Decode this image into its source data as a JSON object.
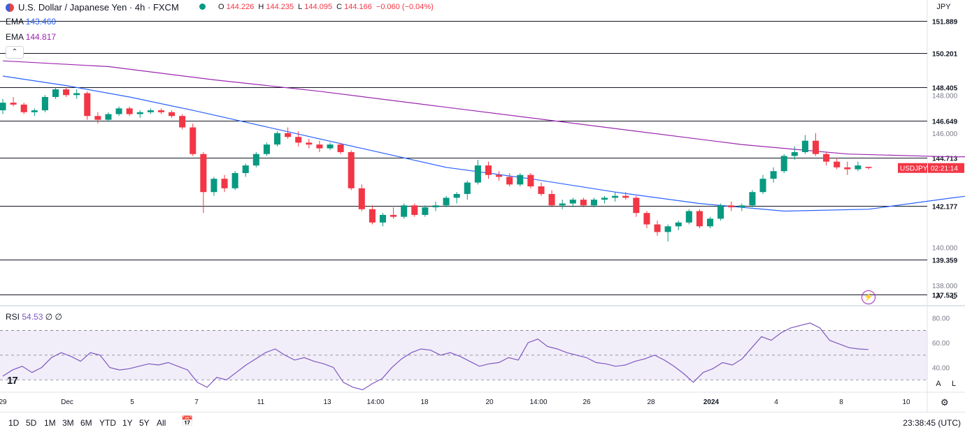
{
  "header": {
    "title": "U.S. Dollar / Japanese Yen · 4h · FXCM",
    "ohlc": {
      "o_label": "O",
      "o": "144.226",
      "h_label": "H",
      "h": "144.235",
      "l_label": "L",
      "l": "144.095",
      "c_label": "C",
      "c": "144.166",
      "change": "−0.060 (−0.04%)"
    },
    "ema1": {
      "label": "EMA",
      "value": "143.460"
    },
    "ema2": {
      "label": "EMA",
      "value": "144.817"
    },
    "currency_button": "JPY"
  },
  "price_axis": {
    "ticks": [
      "148.000",
      "146.000",
      "140.000",
      "138.000"
    ],
    "level_labels": [
      "151.889",
      "150.201",
      "148.405",
      "146.649",
      "144.713",
      "142.177",
      "139.359",
      "137.525"
    ],
    "symbol_tag": "USDJPY",
    "countdown": "02:21:14"
  },
  "rsi": {
    "label": "RSI",
    "value": "54.53",
    "extra1": "∅",
    "extra2": "∅",
    "ticks": [
      "80.00",
      "60.00",
      "40.00"
    ]
  },
  "time_axis": [
    "29",
    "Dec",
    "5",
    "7",
    "11",
    "13",
    "14:00",
    "18",
    "20",
    "14:00",
    "26",
    "28",
    "2024",
    "4",
    "8",
    "10"
  ],
  "range_buttons": [
    "1D",
    "5D",
    "1M",
    "3M",
    "6M",
    "YTD",
    "1Y",
    "5Y",
    "All"
  ],
  "clock": "23:38:45 (UTC)",
  "scale_buttons": {
    "a": "A",
    "l": "L"
  },
  "colors": {
    "up": "#089981",
    "down": "#f23645",
    "ema_fast": "#2962ff",
    "ema_slow": "#9c27b0",
    "rsi_line": "#7e57c2",
    "level": "#131722"
  },
  "chart_data": {
    "type": "candlestick",
    "instrument": "USDJPY",
    "timeframe": "4h",
    "ylim": [
      137.0,
      153.0
    ],
    "horizontal_levels": [
      151.889,
      150.201,
      148.405,
      146.649,
      144.713,
      142.177,
      139.359,
      137.525
    ],
    "candles": [
      [
        147.2,
        147.8,
        147.0,
        147.6
      ],
      [
        147.6,
        147.9,
        147.4,
        147.5
      ],
      [
        147.5,
        147.6,
        147.0,
        147.1
      ],
      [
        147.1,
        147.3,
        146.9,
        147.2
      ],
      [
        147.2,
        148.0,
        147.1,
        147.9
      ],
      [
        147.9,
        148.4,
        147.8,
        148.3
      ],
      [
        148.3,
        148.4,
        147.9,
        148.0
      ],
      [
        148.0,
        148.3,
        147.8,
        148.1
      ],
      [
        148.1,
        148.2,
        146.7,
        146.9
      ],
      [
        146.9,
        147.1,
        146.5,
        146.7
      ],
      [
        146.7,
        147.1,
        146.6,
        147.0
      ],
      [
        147.0,
        147.4,
        146.9,
        147.3
      ],
      [
        147.3,
        147.4,
        146.9,
        147.0
      ],
      [
        147.0,
        147.2,
        146.8,
        147.1
      ],
      [
        147.1,
        147.3,
        147.0,
        147.2
      ],
      [
        147.2,
        147.3,
        147.0,
        147.1
      ],
      [
        147.1,
        147.2,
        146.8,
        146.9
      ],
      [
        146.9,
        147.0,
        146.2,
        146.3
      ],
      [
        146.3,
        146.5,
        144.8,
        144.9
      ],
      [
        144.9,
        145.0,
        141.8,
        142.9
      ],
      [
        142.9,
        143.7,
        142.7,
        143.6
      ],
      [
        143.6,
        143.8,
        142.9,
        143.1
      ],
      [
        143.1,
        144.0,
        143.0,
        143.9
      ],
      [
        143.9,
        144.4,
        143.7,
        144.3
      ],
      [
        144.3,
        145.0,
        144.2,
        144.9
      ],
      [
        144.9,
        145.5,
        144.8,
        145.4
      ],
      [
        145.4,
        146.1,
        145.3,
        146.0
      ],
      [
        146.0,
        146.3,
        145.7,
        145.8
      ],
      [
        145.8,
        146.1,
        145.3,
        145.5
      ],
      [
        145.5,
        145.7,
        145.2,
        145.4
      ],
      [
        145.4,
        145.6,
        145.0,
        145.2
      ],
      [
        145.2,
        145.5,
        145.1,
        145.4
      ],
      [
        145.4,
        145.5,
        144.9,
        145.0
      ],
      [
        145.0,
        145.1,
        143.0,
        143.1
      ],
      [
        143.1,
        143.3,
        141.9,
        142.0
      ],
      [
        142.0,
        142.2,
        141.2,
        141.3
      ],
      [
        141.3,
        141.8,
        141.1,
        141.7
      ],
      [
        141.7,
        142.1,
        141.5,
        141.6
      ],
      [
        141.6,
        142.3,
        141.5,
        142.2
      ],
      [
        142.2,
        142.3,
        141.6,
        141.7
      ],
      [
        141.7,
        142.2,
        141.6,
        142.1
      ],
      [
        142.1,
        142.4,
        141.9,
        142.2
      ],
      [
        142.2,
        142.7,
        142.1,
        142.6
      ],
      [
        142.6,
        142.9,
        142.3,
        142.8
      ],
      [
        142.8,
        143.5,
        142.5,
        143.4
      ],
      [
        143.4,
        144.6,
        143.3,
        144.3
      ],
      [
        144.3,
        144.5,
        143.6,
        143.8
      ],
      [
        143.8,
        144.0,
        143.5,
        143.7
      ],
      [
        143.7,
        143.9,
        143.2,
        143.3
      ],
      [
        143.3,
        143.9,
        143.2,
        143.8
      ],
      [
        143.8,
        143.9,
        143.1,
        143.2
      ],
      [
        143.2,
        143.4,
        142.7,
        142.8
      ],
      [
        142.8,
        143.0,
        142.1,
        142.2
      ],
      [
        142.2,
        142.5,
        142.0,
        142.3
      ],
      [
        142.3,
        142.6,
        142.1,
        142.5
      ],
      [
        142.5,
        142.6,
        142.1,
        142.2
      ],
      [
        142.2,
        142.6,
        142.1,
        142.5
      ],
      [
        142.5,
        142.7,
        142.3,
        142.6
      ],
      [
        142.6,
        142.9,
        142.4,
        142.7
      ],
      [
        142.7,
        142.9,
        142.5,
        142.6
      ],
      [
        142.6,
        142.7,
        141.6,
        141.8
      ],
      [
        141.8,
        141.9,
        141.0,
        141.2
      ],
      [
        141.2,
        141.4,
        140.6,
        140.8
      ],
      [
        140.8,
        141.2,
        140.3,
        141.1
      ],
      [
        141.1,
        141.4,
        140.9,
        141.3
      ],
      [
        141.3,
        142.0,
        141.2,
        141.9
      ],
      [
        141.9,
        142.0,
        141.0,
        141.1
      ],
      [
        141.1,
        141.6,
        141.0,
        141.5
      ],
      [
        141.5,
        142.3,
        141.4,
        142.2
      ],
      [
        142.2,
        142.4,
        141.9,
        142.1
      ],
      [
        142.1,
        142.3,
        141.9,
        142.2
      ],
      [
        142.2,
        143.0,
        142.1,
        142.9
      ],
      [
        142.9,
        143.8,
        142.8,
        143.6
      ],
      [
        143.6,
        144.2,
        143.4,
        144.0
      ],
      [
        144.0,
        144.9,
        143.9,
        144.8
      ],
      [
        144.8,
        145.3,
        144.6,
        145.0
      ],
      [
        145.0,
        145.9,
        144.9,
        145.6
      ],
      [
        145.6,
        146.0,
        144.8,
        144.9
      ],
      [
        144.9,
        145.0,
        144.3,
        144.5
      ],
      [
        144.5,
        144.7,
        144.1,
        144.2
      ],
      [
        144.2,
        144.5,
        143.8,
        144.1
      ],
      [
        144.1,
        144.5,
        144.0,
        144.3
      ],
      [
        144.226,
        144.235,
        144.095,
        144.166
      ]
    ],
    "ema_fast": [
      [
        0,
        149.0
      ],
      [
        6,
        148.5
      ],
      [
        12,
        147.9
      ],
      [
        18,
        147.2
      ],
      [
        26,
        146.2
      ],
      [
        34,
        145.2
      ],
      [
        42,
        144.2
      ],
      [
        50,
        143.6
      ],
      [
        58,
        142.9
      ],
      [
        66,
        142.3
      ],
      [
        74,
        141.9
      ],
      [
        82,
        142.0
      ],
      [
        90,
        142.6
      ],
      [
        96,
        143.0
      ],
      [
        102,
        143.3
      ],
      [
        106,
        143.46
      ]
    ],
    "ema_slow": [
      [
        0,
        149.8
      ],
      [
        10,
        149.5
      ],
      [
        20,
        148.8
      ],
      [
        30,
        148.2
      ],
      [
        40,
        147.5
      ],
      [
        50,
        146.8
      ],
      [
        60,
        146.1
      ],
      [
        70,
        145.4
      ],
      [
        80,
        144.9
      ],
      [
        90,
        144.75
      ],
      [
        100,
        144.8
      ],
      [
        106,
        144.817
      ]
    ],
    "rsi_ylim": [
      20,
      90
    ],
    "rsi_bands": [
      30,
      50,
      70
    ],
    "rsi_values": [
      33,
      38,
      41,
      36,
      40,
      48,
      52,
      49,
      45,
      52,
      50,
      40,
      38,
      39,
      41,
      43,
      42,
      44,
      41,
      38,
      28,
      24,
      32,
      30,
      36,
      42,
      47,
      52,
      55,
      50,
      46,
      48,
      45,
      43,
      40,
      28,
      24,
      22,
      27,
      31,
      40,
      47,
      52,
      55,
      54,
      50,
      52,
      49,
      45,
      41,
      43,
      44,
      48,
      46,
      60,
      63,
      57,
      55,
      52,
      50,
      48,
      44,
      43,
      41,
      42,
      45,
      47,
      50,
      46,
      41,
      35,
      28,
      36,
      39,
      44,
      42,
      47,
      56,
      65,
      62,
      68,
      72,
      74,
      76,
      72,
      62,
      59,
      56,
      55,
      54.53
    ],
    "rsi_value": 54.53
  }
}
